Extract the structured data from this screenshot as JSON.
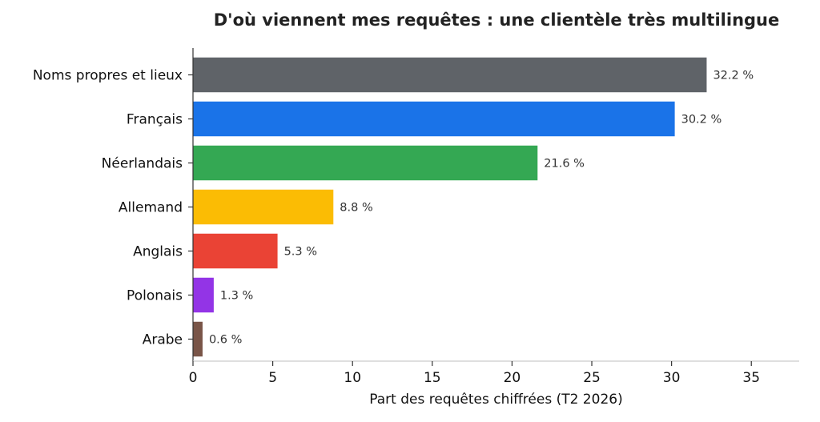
{
  "chart_data": {
    "type": "bar",
    "orientation": "horizontal",
    "title": "D'où viennent mes requêtes : une clientèle très multilingue",
    "xlabel": "Part des requêtes chiffrées (T2 2026)",
    "ylabel": "",
    "xlim": [
      0,
      38
    ],
    "xticks": [
      0,
      5,
      10,
      15,
      20,
      25,
      30,
      35
    ],
    "grid": false,
    "categories": [
      "Noms propres et lieux",
      "Français",
      "Néerlandais",
      "Allemand",
      "Anglais",
      "Polonais",
      "Arabe"
    ],
    "values": [
      32.2,
      30.2,
      21.6,
      8.8,
      5.3,
      1.3,
      0.6
    ],
    "data_labels": [
      "32.2 %",
      "30.2 %",
      "21.6 %",
      "8.8 %",
      "5.3 %",
      "1.3 %",
      "0.6 %"
    ],
    "colors": [
      "#5f6368",
      "#1a73e8",
      "#34a853",
      "#fbbc04",
      "#ea4335",
      "#9334e6",
      "#795548"
    ]
  }
}
